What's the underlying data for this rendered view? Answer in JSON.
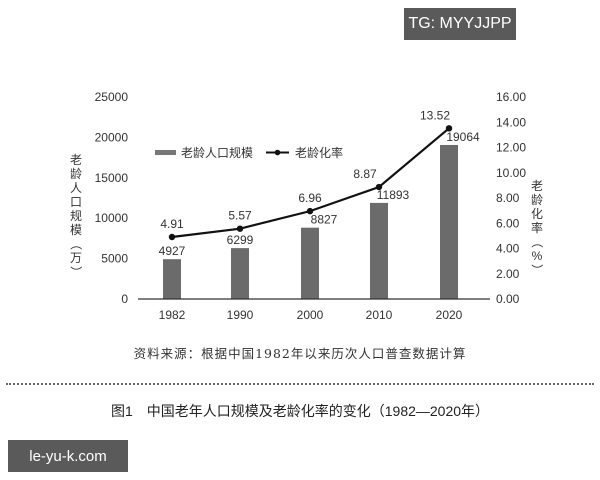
{
  "watermarks": {
    "top_right": "TG: MYYJJPP",
    "bottom_left": "le-yu-k.com"
  },
  "chart_data": {
    "type": "bar",
    "title": "中国老年人口规模及老龄化率的变化（1982—2020年）",
    "figure_label": "图1",
    "categories": [
      "1982",
      "1990",
      "2000",
      "2010",
      "2020"
    ],
    "series": [
      {
        "name": "老龄人口规模",
        "type": "bar",
        "axis": "left",
        "color": "#6b6b6b",
        "values": [
          4927,
          6299,
          8827,
          11893,
          19064
        ]
      },
      {
        "name": "老龄化率",
        "type": "line",
        "axis": "right",
        "color": "#111111",
        "values": [
          4.91,
          5.57,
          6.96,
          8.87,
          13.52
        ]
      }
    ],
    "ylabel_left": "老龄人口规模（万）",
    "ylabel_right": "老龄化率（%）",
    "ylim_left": [
      0,
      25000
    ],
    "ylim_right": [
      0,
      16
    ],
    "yticks_left": [
      "0",
      "5000",
      "10000",
      "15000",
      "20000",
      "25000"
    ],
    "yticks_right": [
      "0.00",
      "2.00",
      "4.00",
      "6.00",
      "8.00",
      "10.00",
      "12.00",
      "14.00",
      "16.00"
    ],
    "grid": false,
    "legend_position": "top-inside",
    "bar_labels": [
      "4927",
      "6299",
      "8827",
      "11893",
      "19064"
    ],
    "line_labels": [
      "4.91",
      "5.57",
      "6.96",
      "8.87",
      "13.52"
    ],
    "source_note": "资料来源：根据中国1982年以来历次人口普查数据计算"
  },
  "caption": {
    "figure_label": "图1",
    "text": "中国老年人口规模及老龄化率的变化（1982—2020年）"
  }
}
